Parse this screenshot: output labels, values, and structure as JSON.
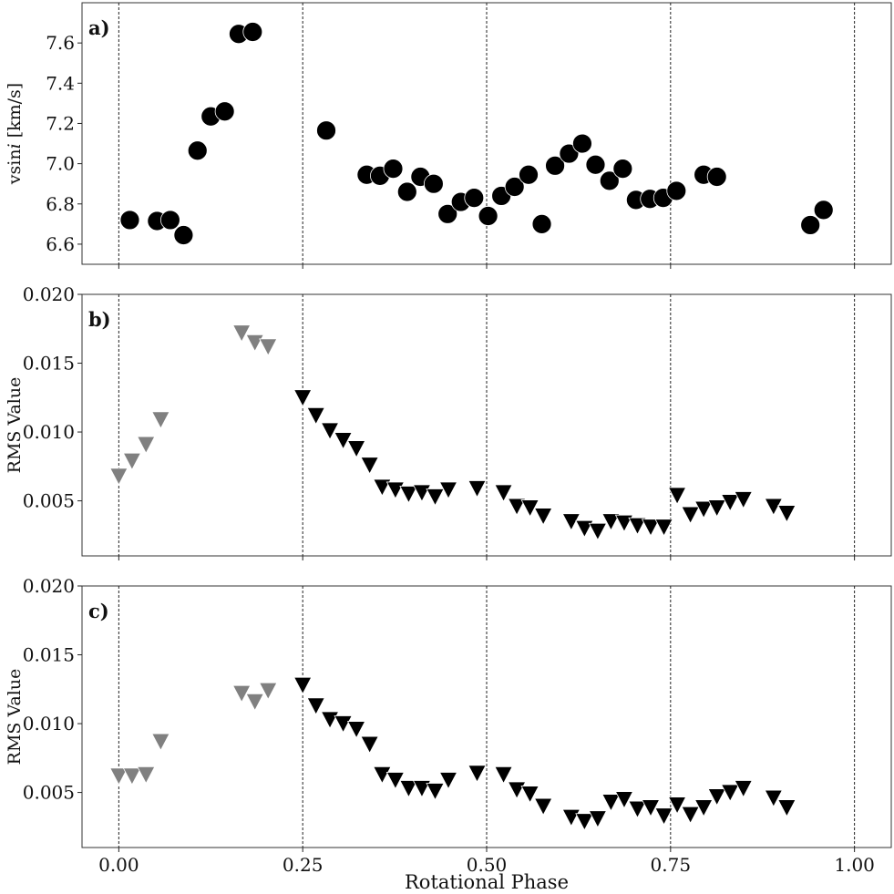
{
  "chart_data": [
    {
      "type": "scatter",
      "tag": "a)",
      "ylabel": "vsin",
      "ylabel_italic": "i",
      "ylabel_unit": " [km/s]",
      "xlim": [
        -0.05,
        1.05
      ],
      "ylim": [
        6.5,
        7.8
      ],
      "yticks": [
        "6.6",
        "6.8",
        "7.0",
        "7.2",
        "7.4",
        "7.6"
      ],
      "vlines": [
        0.0,
        0.25,
        0.5,
        0.75,
        1.0
      ],
      "marker": "circle",
      "series": [
        {
          "color": "#000000",
          "x": [
            0.015,
            0.052,
            0.07,
            0.088,
            0.107,
            0.125,
            0.144,
            0.163,
            0.182,
            0.282,
            0.337,
            0.355,
            0.373,
            0.392,
            0.41,
            0.428,
            0.447,
            0.465,
            0.483,
            0.502,
            0.52,
            0.538,
            0.557,
            0.575,
            0.593,
            0.612,
            0.63,
            0.648,
            0.667,
            0.685,
            0.703,
            0.722,
            0.74,
            0.758,
            0.795,
            0.813,
            0.94,
            0.958
          ],
          "y": [
            6.72,
            6.715,
            6.72,
            6.645,
            7.065,
            7.235,
            7.26,
            7.645,
            7.655,
            7.165,
            6.945,
            6.94,
            6.975,
            6.86,
            6.935,
            6.9,
            6.75,
            6.81,
            6.83,
            6.74,
            6.84,
            6.885,
            6.945,
            6.7,
            6.99,
            7.05,
            7.1,
            6.995,
            6.915,
            6.975,
            6.82,
            6.825,
            6.83,
            6.865,
            6.945,
            6.935,
            6.695,
            6.77
          ]
        }
      ]
    },
    {
      "type": "scatter",
      "tag": "b)",
      "ylabel": "RMS Value",
      "xlim": [
        -0.05,
        1.05
      ],
      "ylim": [
        0.001,
        0.02
      ],
      "yticks": [
        "0.005",
        "0.010",
        "0.015",
        "0.020"
      ],
      "vlines": [
        0.0,
        0.25,
        0.5,
        0.75,
        1.0
      ],
      "marker": "triangle-down",
      "series": [
        {
          "color": "#808080",
          "x": [
            0.0,
            0.018,
            0.037,
            0.057,
            0.167,
            0.185,
            0.203
          ],
          "y": [
            0.0068,
            0.0079,
            0.0091,
            0.0109,
            0.0172,
            0.0165,
            0.0162
          ]
        },
        {
          "color": "#000000",
          "x": [
            0.25,
            0.268,
            0.287,
            0.305,
            0.323,
            0.341,
            0.358,
            0.376,
            0.394,
            0.412,
            0.43,
            0.448,
            0.487,
            0.523,
            0.541,
            0.559,
            0.577,
            0.615,
            0.633,
            0.651,
            0.669,
            0.687,
            0.705,
            0.723,
            0.741,
            0.759,
            0.777,
            0.795,
            0.813,
            0.831,
            0.849,
            0.89,
            0.908
          ],
          "y": [
            0.0125,
            0.0112,
            0.0101,
            0.0094,
            0.0088,
            0.0076,
            0.006,
            0.0058,
            0.0055,
            0.0056,
            0.0053,
            0.0058,
            0.0059,
            0.0056,
            0.0046,
            0.0045,
            0.0039,
            0.0035,
            0.003,
            0.0028,
            0.0035,
            0.0034,
            0.0032,
            0.0031,
            0.0031,
            0.0054,
            0.004,
            0.0044,
            0.0045,
            0.0049,
            0.0051,
            0.0046,
            0.0041
          ]
        }
      ]
    },
    {
      "type": "scatter",
      "tag": "c)",
      "ylabel": "RMS Value",
      "xlim": [
        -0.05,
        1.05
      ],
      "ylim": [
        0.001,
        0.02
      ],
      "yticks": [
        "0.005",
        "0.010",
        "0.015",
        "0.020"
      ],
      "vlines": [
        0.0,
        0.25,
        0.5,
        0.75,
        1.0
      ],
      "marker": "triangle-down",
      "series": [
        {
          "color": "#808080",
          "x": [
            0.0,
            0.018,
            0.037,
            0.057,
            0.167,
            0.185,
            0.203
          ],
          "y": [
            0.0062,
            0.0062,
            0.0063,
            0.0087,
            0.0122,
            0.0116,
            0.0124
          ]
        },
        {
          "color": "#000000",
          "x": [
            0.25,
            0.268,
            0.287,
            0.305,
            0.323,
            0.341,
            0.358,
            0.376,
            0.394,
            0.412,
            0.43,
            0.448,
            0.487,
            0.523,
            0.541,
            0.559,
            0.577,
            0.615,
            0.633,
            0.651,
            0.669,
            0.687,
            0.705,
            0.723,
            0.741,
            0.759,
            0.777,
            0.795,
            0.813,
            0.831,
            0.849,
            0.89,
            0.908
          ],
          "y": [
            0.0128,
            0.0113,
            0.0103,
            0.01,
            0.0096,
            0.0085,
            0.0063,
            0.0059,
            0.0053,
            0.0053,
            0.0051,
            0.0059,
            0.0064,
            0.0063,
            0.0052,
            0.0049,
            0.004,
            0.0032,
            0.0029,
            0.0031,
            0.0043,
            0.0045,
            0.0038,
            0.0039,
            0.0033,
            0.0041,
            0.0034,
            0.0039,
            0.0047,
            0.005,
            0.0053,
            0.0046,
            0.0039
          ]
        }
      ]
    }
  ],
  "xaxis": {
    "label": "Rotational Phase",
    "ticks": [
      "0.00",
      "0.25",
      "0.50",
      "0.75",
      "1.00"
    ],
    "tick_values": [
      0.0,
      0.25,
      0.5,
      0.75,
      1.0
    ]
  }
}
